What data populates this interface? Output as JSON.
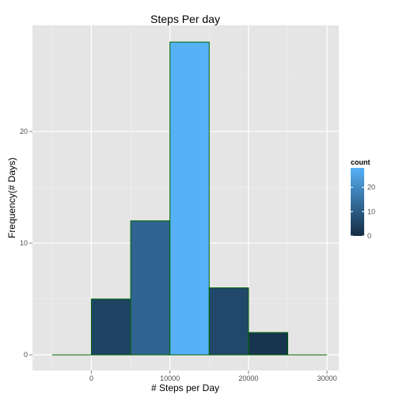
{
  "chart_data": {
    "type": "bar",
    "title": "Steps Per day",
    "xlabel": "# Steps per Day",
    "ylabel": "Frequency(# Days)",
    "bins": [
      {
        "start": -5000,
        "end": 0,
        "count": 0
      },
      {
        "start": 0,
        "end": 5000,
        "count": 5
      },
      {
        "start": 5000,
        "end": 10000,
        "count": 12
      },
      {
        "start": 10000,
        "end": 15000,
        "count": 28
      },
      {
        "start": 15000,
        "end": 20000,
        "count": 6
      },
      {
        "start": 20000,
        "end": 25000,
        "count": 2
      },
      {
        "start": 25000,
        "end": 30000,
        "count": 0
      }
    ],
    "xlim": [
      -7500,
      31500
    ],
    "ylim": [
      -1.4,
      29.5
    ],
    "xticks": [
      0,
      10000,
      20000,
      30000
    ],
    "xtick_labels": [
      "0",
      "10000",
      "20000",
      "30000"
    ],
    "yticks": [
      0,
      10,
      20
    ],
    "ytick_labels": [
      "0",
      "10",
      "20"
    ],
    "grid": true,
    "legend": {
      "title": "count",
      "placement": "right",
      "ticks": [
        0,
        10,
        20
      ],
      "tick_labels": [
        "0",
        "10",
        "20"
      ],
      "range": [
        0,
        28
      ]
    },
    "colors": {
      "low": "#132B43",
      "high": "#56B1F7",
      "bar_outline": "#006400",
      "panel": "#e5e5e5",
      "grid_major": "#ffffff",
      "grid_minor": "#f0f0f0"
    }
  }
}
